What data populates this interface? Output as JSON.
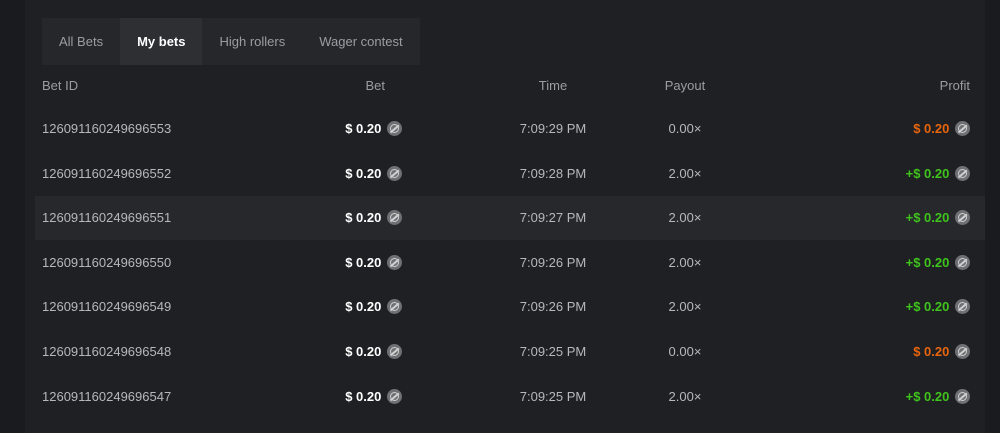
{
  "tabs": [
    {
      "label": "All Bets"
    },
    {
      "label": "My bets",
      "active": true
    },
    {
      "label": "High rollers"
    },
    {
      "label": "Wager contest"
    }
  ],
  "columns": {
    "id": "Bet ID",
    "bet": "Bet",
    "time": "Time",
    "payout": "Payout",
    "profit": "Profit"
  },
  "colors": {
    "loss": "#e8650e",
    "win": "#3fc41c"
  },
  "coin_icon": "currency-coin-icon",
  "rows": [
    {
      "id": "126091160249696553",
      "bet": "$ 0.20",
      "time": "7:09:29 PM",
      "payout": "0.00×",
      "profit": "$ 0.20",
      "win": false
    },
    {
      "id": "126091160249696552",
      "bet": "$ 0.20",
      "time": "7:09:28 PM",
      "payout": "2.00×",
      "profit": "+$ 0.20",
      "win": true
    },
    {
      "id": "126091160249696551",
      "bet": "$ 0.20",
      "time": "7:09:27 PM",
      "payout": "2.00×",
      "profit": "+$ 0.20",
      "win": true
    },
    {
      "id": "126091160249696550",
      "bet": "$ 0.20",
      "time": "7:09:26 PM",
      "payout": "2.00×",
      "profit": "+$ 0.20",
      "win": true
    },
    {
      "id": "126091160249696549",
      "bet": "$ 0.20",
      "time": "7:09:26 PM",
      "payout": "2.00×",
      "profit": "+$ 0.20",
      "win": true
    },
    {
      "id": "126091160249696548",
      "bet": "$ 0.20",
      "time": "7:09:25 PM",
      "payout": "0.00×",
      "profit": "$ 0.20",
      "win": false
    },
    {
      "id": "126091160249696547",
      "bet": "$ 0.20",
      "time": "7:09:25 PM",
      "payout": "2.00×",
      "profit": "+$ 0.20",
      "win": true
    }
  ]
}
